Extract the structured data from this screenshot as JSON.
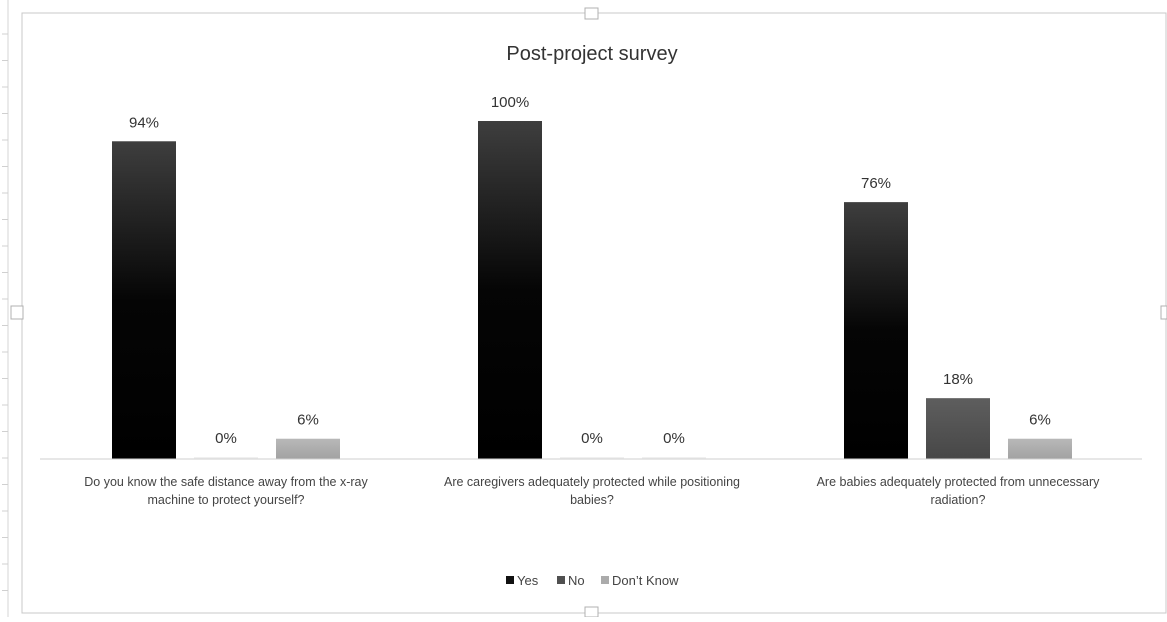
{
  "chart_data": {
    "type": "bar",
    "title": "Post-project survey",
    "categories": [
      [
        "Do you know the safe distance away from the x-ray",
        "machine to protect yourself?"
      ],
      [
        "Are caregivers adequately protected while positioning",
        "babies?"
      ],
      [
        "Are babies adequately protected from unnecessary",
        "radiation?"
      ]
    ],
    "series": [
      {
        "name": "Yes",
        "values": [
          94,
          100,
          76
        ],
        "labels": [
          "94%",
          "100%",
          "76%"
        ]
      },
      {
        "name": "No",
        "values": [
          0,
          0,
          18
        ],
        "labels": [
          "0%",
          "0%",
          "18%"
        ]
      },
      {
        "name": "Don't Know",
        "values": [
          6,
          0,
          6
        ],
        "labels": [
          "6%",
          "0%",
          "6%"
        ]
      }
    ],
    "legend_labels": [
      "Yes",
      "No",
      "Don’t Know"
    ],
    "ylim": [
      0,
      100
    ],
    "grid": false,
    "legend_position": "bottom",
    "colors": {
      "Yes": "#111111",
      "No": "#505050",
      "Don't Know": "#ababab"
    }
  }
}
